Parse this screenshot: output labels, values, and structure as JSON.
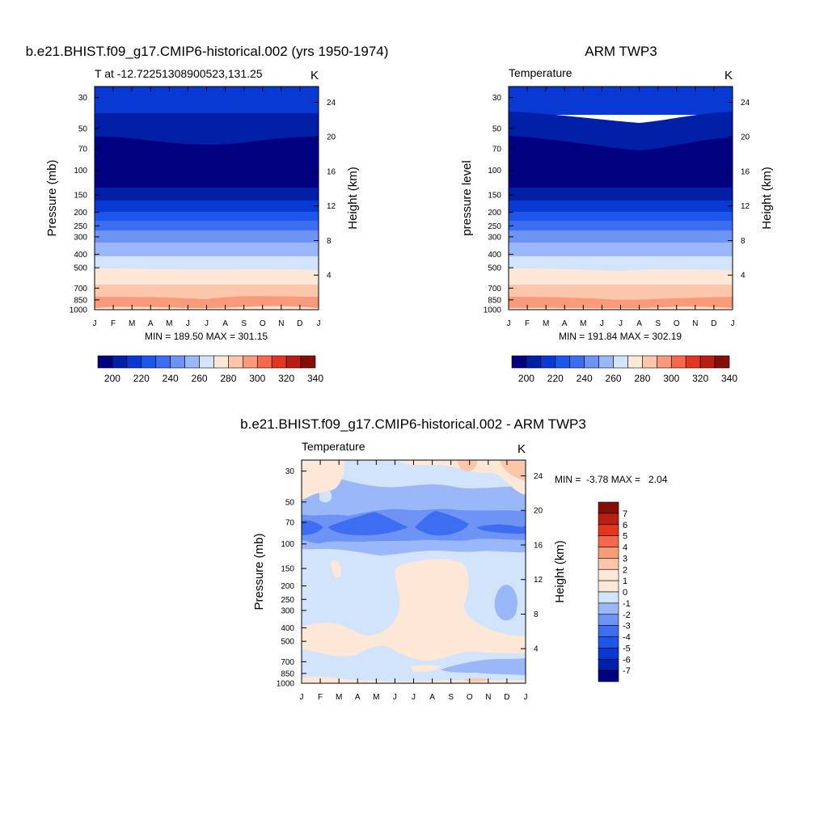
{
  "chart_data": [
    {
      "type": "heatmap",
      "title": "b.e21.BHIST.f09_g17.CMIP6-historical.002 (yrs 1950-1974)",
      "left_subtitle": "T at -12.72251308900523,131.25",
      "right_subtitle": "K",
      "ylabel": "Pressure (mb)",
      "ylabel_right": "Height (km)",
      "stats": "MIN = 189.50 MAX = 301.15",
      "x_ticks": [
        "J",
        "F",
        "M",
        "A",
        "M",
        "J",
        "J",
        "A",
        "S",
        "O",
        "N",
        "D",
        "J"
      ],
      "y_ticks": [
        30,
        50,
        70,
        100,
        150,
        200,
        250,
        300,
        400,
        500,
        700,
        850,
        1000
      ],
      "y_right_ticks": [
        24,
        20,
        16,
        12,
        8,
        4
      ],
      "ylim": [
        1000,
        25
      ],
      "colorbar": {
        "orientation": "horizontal",
        "labels": [
          "200",
          "220",
          "240",
          "260",
          "280",
          "300",
          "320",
          "340"
        ],
        "levels_from": 190,
        "levels_step": 10
      },
      "bands": [
        {
          "level": 235,
          "pressure_top": 25,
          "pressure_bottom": 42
        },
        {
          "level": 220,
          "pressure_top": 42,
          "pressure_bottom": 62,
          "note": "bottom edge dips to ~67 mb near Jul-Aug"
        },
        {
          "level": 190,
          "pressure_top": 62,
          "pressure_bottom": 135
        },
        {
          "level": 210,
          "pressure_top": 135,
          "pressure_bottom": 165
        },
        {
          "level": 220,
          "pressure_top": 165,
          "pressure_bottom": 200
        },
        {
          "level": 230,
          "pressure_top": 200,
          "pressure_bottom": 240
        },
        {
          "level": 240,
          "pressure_top": 240,
          "pressure_bottom": 280
        },
        {
          "level": 250,
          "pressure_top": 280,
          "pressure_bottom": 340
        },
        {
          "level": 260,
          "pressure_top": 340,
          "pressure_bottom": 420
        },
        {
          "level": 270,
          "pressure_top": 420,
          "pressure_bottom": 560
        },
        {
          "level": 280,
          "pressure_top": 560,
          "pressure_bottom": 700
        },
        {
          "level": 290,
          "pressure_top": 700,
          "pressure_bottom": 860
        },
        {
          "level": 300,
          "pressure_top": 860,
          "pressure_bottom": 1000
        }
      ]
    },
    {
      "type": "heatmap",
      "title": "ARM TWP3",
      "left_subtitle": "Temperature",
      "right_subtitle": "K",
      "ylabel": "pressure level",
      "ylabel_right": "Height (km)",
      "stats": "MIN = 191.84 MAX = 302.19",
      "x_ticks": [
        "J",
        "F",
        "M",
        "A",
        "M",
        "J",
        "J",
        "A",
        "S",
        "O",
        "N",
        "D",
        "J"
      ],
      "y_ticks": [
        30,
        50,
        70,
        100,
        150,
        200,
        250,
        300,
        400,
        500,
        700,
        850,
        1000
      ],
      "y_right_ticks": [
        24,
        20,
        16,
        12,
        8,
        4
      ],
      "ylim": [
        1000,
        25
      ],
      "colorbar": {
        "orientation": "horizontal",
        "labels": [
          "200",
          "220",
          "240",
          "260",
          "280",
          "300",
          "320",
          "340"
        ],
        "levels_from": 190,
        "levels_step": 10
      },
      "bands": [
        {
          "level": 235,
          "pressure_top": 25,
          "pressure_bottom": 40
        },
        {
          "level": 220,
          "pressure_top": 40,
          "pressure_bottom": 60,
          "note": "bottom edge dips to ~75 mb near Aug"
        },
        {
          "level": 190,
          "pressure_top": 60,
          "pressure_bottom": 135
        },
        {
          "level": 210,
          "pressure_top": 135,
          "pressure_bottom": 165
        },
        {
          "level": 220,
          "pressure_top": 165,
          "pressure_bottom": 200
        },
        {
          "level": 230,
          "pressure_top": 200,
          "pressure_bottom": 240
        },
        {
          "level": 240,
          "pressure_top": 240,
          "pressure_bottom": 280
        },
        {
          "level": 250,
          "pressure_top": 280,
          "pressure_bottom": 340
        },
        {
          "level": 260,
          "pressure_top": 340,
          "pressure_bottom": 420
        },
        {
          "level": 270,
          "pressure_top": 420,
          "pressure_bottom": 560
        },
        {
          "level": 280,
          "pressure_top": 560,
          "pressure_bottom": 700
        },
        {
          "level": 290,
          "pressure_top": 700,
          "pressure_bottom": 860
        },
        {
          "level": 300,
          "pressure_top": 860,
          "pressure_bottom": 1000
        }
      ]
    },
    {
      "type": "heatmap",
      "title": "b.e21.BHIST.f09_g17.CMIP6-historical.002 - ARM TWP3",
      "left_subtitle": "Temperature",
      "right_subtitle": "K",
      "ylabel": "Pressure (mb)",
      "ylabel_right": "Height (km)",
      "stats": "MIN =  -3.78 MAX =   2.04",
      "x_ticks": [
        "J",
        "F",
        "M",
        "A",
        "M",
        "J",
        "J",
        "A",
        "S",
        "O",
        "N",
        "D",
        "J"
      ],
      "y_ticks": [
        30,
        50,
        70,
        100,
        150,
        200,
        250,
        300,
        400,
        500,
        700,
        850,
        1000
      ],
      "y_right_ticks": [
        24,
        20,
        16,
        12,
        8,
        4
      ],
      "ylim": [
        1000,
        25
      ],
      "colorbar": {
        "orientation": "vertical",
        "labels": [
          "7",
          "6",
          "5",
          "4",
          "3",
          "2",
          "1",
          "0",
          "-1",
          "-2",
          "-3",
          "-4",
          "-5",
          "-6",
          "-7"
        ],
        "levels_from": -7,
        "levels_step": 1
      },
      "background_level": -0.5,
      "regions": [
        {
          "level": -1.5,
          "description": "band 36-135 mb with notch near Mar"
        },
        {
          "level": -2.5,
          "description": "band 55-110 mb"
        },
        {
          "level": -3.5,
          "description": "blobs at 62-100 mb near Jan, Apr, Jul, Nov"
        },
        {
          "level": 0.5,
          "description": "upper-left corner above 45 mb"
        },
        {
          "level": 1.5,
          "description": "upper-right corner near Oct and Dec above 45 mb"
        },
        {
          "level": 0.5,
          "description": "large region Jun-Aug 140-700 mb"
        },
        {
          "level": 0.5,
          "description": "band 390-680 mb across Jan-Mar and Sep-Jan"
        },
        {
          "level": -1.5,
          "description": "oval near Nov at 250 mb"
        },
        {
          "level": -1.5,
          "description": "strip 700-850 mb Jul-Jan"
        },
        {
          "level": 0.5,
          "description": "thin strip near 1000 mb"
        }
      ]
    }
  ]
}
